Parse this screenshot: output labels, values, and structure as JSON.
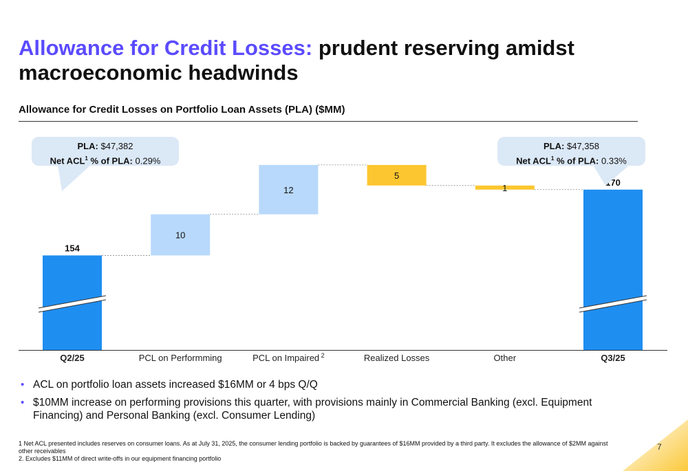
{
  "header": {
    "title_accent": "Allowance for Credit Losses:",
    "title_rest": "prudent reserving amidst macroeconomic headwinds"
  },
  "chart_title": "Allowance for Credit Losses on Portfolio Loan Assets (PLA) ($MM)",
  "callouts": {
    "left": {
      "pla_label": "PLA:",
      "pla_value": "$47,382",
      "acl_label": "Net ACL",
      "acl_sup": "1",
      "acl_label2": "% of PLA:",
      "acl_value": "0.29%"
    },
    "right": {
      "pla_label": "PLA:",
      "pla_value": "$47,358",
      "acl_label": "Net ACL",
      "acl_sup": "1",
      "acl_label2": "% of PLA:",
      "acl_value": "0.33%"
    }
  },
  "chart_data": {
    "type": "bar",
    "subtype": "waterfall",
    "categories": [
      "Q2/25",
      "PCL on Performming",
      "PCL on Impaired",
      "Realized Losses",
      "Other",
      "Q3/25"
    ],
    "category_sup": [
      "",
      "",
      "2",
      "",
      "",
      ""
    ],
    "bold_categories": [
      true,
      false,
      false,
      false,
      false,
      true
    ],
    "steps": [
      {
        "kind": "total",
        "value": 154,
        "label": "154"
      },
      {
        "kind": "increase",
        "value": 10,
        "label": "10"
      },
      {
        "kind": "increase",
        "value": 12,
        "label": "12"
      },
      {
        "kind": "decrease",
        "value": -5,
        "label": "5"
      },
      {
        "kind": "decrease",
        "value": -1,
        "label": "1"
      },
      {
        "kind": "total",
        "value": 170,
        "label": "170"
      }
    ],
    "axis_break": true,
    "colors": {
      "total": "#1f8ef1",
      "increase": "#b8d9fb",
      "decrease": "#fbc630",
      "connector": "#888888"
    }
  },
  "bullets": [
    "ACL on portfolio loan assets increased $16MM or 4 bps Q/Q",
    "$10MM increase on performing provisions this quarter, with provisions mainly in Commercial Banking (excl. Equipment Financing) and Personal Banking (excl. Consumer Lending)"
  ],
  "footnotes": [
    "1  Net ACL presented includes reserves on consumer loans. As at July 31, 2025, the consumer lending portfolio is backed by guarantees of $16MM provided by a third party. It excludes the allowance of $2MM against other receivables",
    "2. Excludes $11MM of direct write-offs in our equipment financing portfolio"
  ],
  "page_number": "7",
  "colors": {
    "accent": "#5b4bff",
    "callout_bg": "#dbe8f6",
    "corner": "#fbc630"
  }
}
